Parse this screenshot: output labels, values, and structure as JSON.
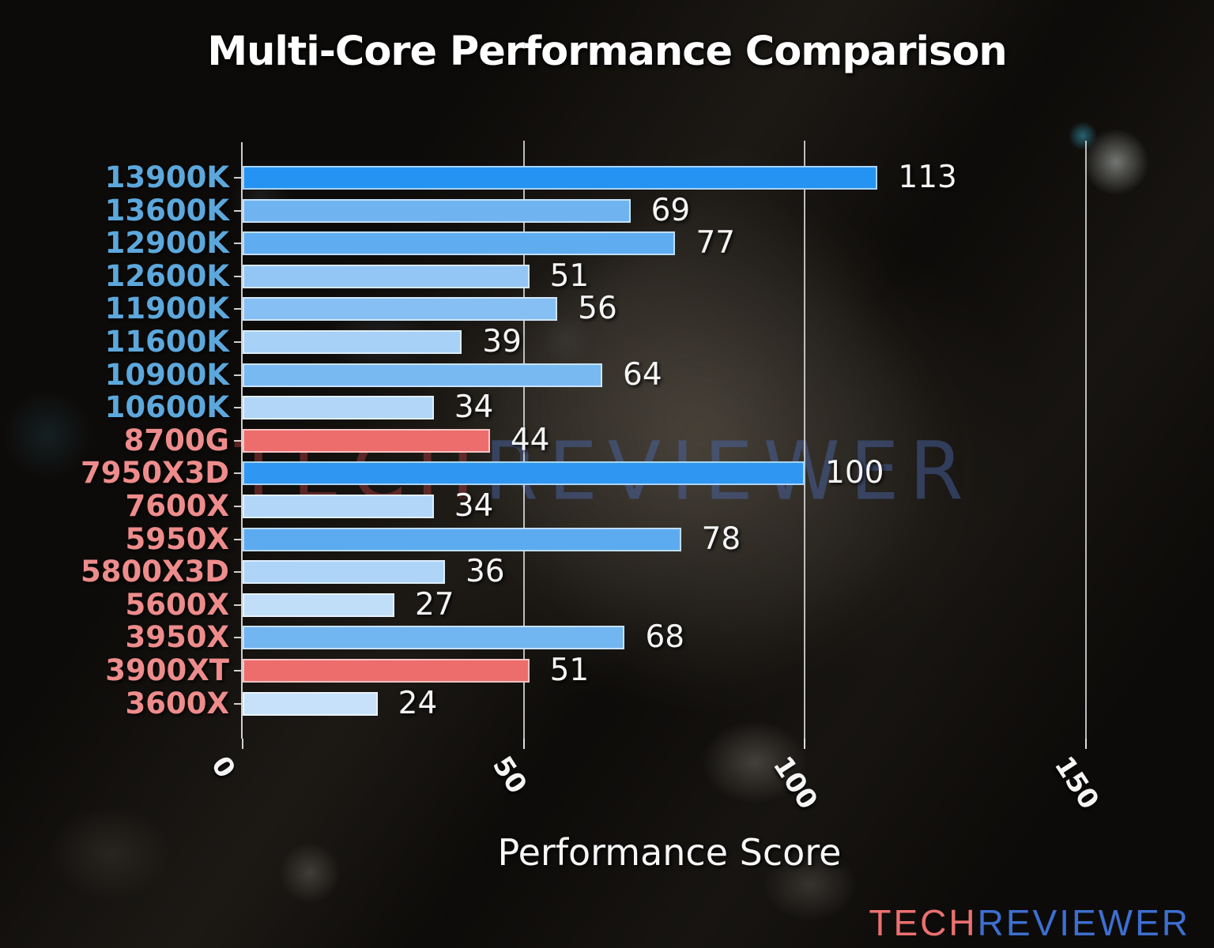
{
  "page": {
    "title": "Multi-Core Performance Comparison"
  },
  "watermark": {
    "tech": "TECH",
    "reviewer": "REVIEWER"
  },
  "logo": {
    "tech": "TECH",
    "reviewer": "REVIEWER"
  },
  "colors": {
    "intel_label": "#5ca8dc",
    "amd_label": "#ee8c8c",
    "axis": "#dedede",
    "value_label": "#f5f5f5",
    "logo_tech": "#ec7170",
    "logo_reviewer": "#3d6fd0",
    "watermark_tech": "rgba(164,58,58,0.5)",
    "watermark_reviewer": "rgba(76,106,178,0.45)"
  },
  "chart_data": {
    "type": "bar",
    "orientation": "horizontal",
    "title": "Multi-Core Performance Comparison",
    "xlabel": "Performance Score",
    "xticks": [
      0,
      50,
      100,
      150
    ],
    "xlim": [
      0,
      166
    ],
    "grid": "vertical gridlines at 50, 100, 150",
    "legend": "none",
    "bars": [
      {
        "label": "13900K",
        "value": 113,
        "group": "intel",
        "bar_color": "#2593f1"
      },
      {
        "label": "13600K",
        "value": 69,
        "group": "intel",
        "bar_color": "#6fb4f1"
      },
      {
        "label": "12900K",
        "value": 77,
        "group": "intel",
        "bar_color": "#5fadf0"
      },
      {
        "label": "12600K",
        "value": 51,
        "group": "intel",
        "bar_color": "#93c6f5"
      },
      {
        "label": "11900K",
        "value": 56,
        "group": "intel",
        "bar_color": "#86bff3"
      },
      {
        "label": "11600K",
        "value": 39,
        "group": "intel",
        "bar_color": "#a7d1f6"
      },
      {
        "label": "10900K",
        "value": 64,
        "group": "intel",
        "bar_color": "#79b9f2"
      },
      {
        "label": "10600K",
        "value": 34,
        "group": "intel",
        "bar_color": "#b1d6f7"
      },
      {
        "label": "8700G",
        "value": 44,
        "group": "amd",
        "bar_color": "#ed6c6c"
      },
      {
        "label": "7950X3D",
        "value": 100,
        "group": "amd",
        "bar_color": "#2f97f1"
      },
      {
        "label": "7600X",
        "value": 34,
        "group": "amd",
        "bar_color": "#b1d6f7"
      },
      {
        "label": "5950X",
        "value": 78,
        "group": "amd",
        "bar_color": "#5cabf0"
      },
      {
        "label": "5800X3D",
        "value": 36,
        "group": "amd",
        "bar_color": "#aed4f7"
      },
      {
        "label": "5600X",
        "value": 27,
        "group": "amd",
        "bar_color": "#c1def9"
      },
      {
        "label": "3950X",
        "value": 68,
        "group": "amd",
        "bar_color": "#71b5f1"
      },
      {
        "label": "3900XT",
        "value": 51,
        "group": "amd",
        "bar_color": "#ed6c6c"
      },
      {
        "label": "3600X",
        "value": 24,
        "group": "amd",
        "bar_color": "#c7e1fa"
      }
    ]
  }
}
